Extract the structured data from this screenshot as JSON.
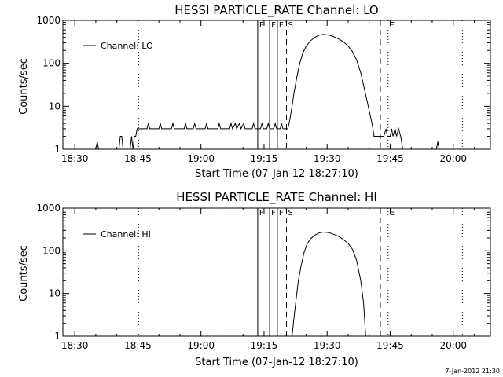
{
  "chart_data": [
    {
      "type": "line",
      "title": "HESSI PARTICLE_RATE Channel: LO",
      "xlabel": "Start Time (07-Jan-12 18:27:10)",
      "ylabel": "Counts/sec",
      "yscale": "log",
      "xlim": [
        "18:27:10",
        "20:08:50"
      ],
      "ylim": [
        1,
        1000
      ],
      "x_ticks": [
        "18:30",
        "18:45",
        "19:00",
        "19:15",
        "19:30",
        "19:45",
        "20:00"
      ],
      "y_ticks": [
        "1",
        "10",
        "100",
        "1000"
      ],
      "grid": false,
      "legend": {
        "position": "top-left",
        "entries": [
          "Channel: LO"
        ]
      },
      "markers": [
        {
          "label": "",
          "time": "18:45:10",
          "style": "dotted"
        },
        {
          "label": "F",
          "time": "19:13:30",
          "style": "solid"
        },
        {
          "label": "F",
          "time": "19:16:20",
          "style": "solid"
        },
        {
          "label": "F",
          "time": "19:18:10",
          "style": "solid"
        },
        {
          "label": "S",
          "time": "19:20:20",
          "style": "dashed"
        },
        {
          "label": "",
          "time": "19:42:40",
          "style": "dashed"
        },
        {
          "label": "E",
          "time": "19:44:30",
          "style": "dotted"
        },
        {
          "label": "",
          "time": "20:02:10",
          "style": "dotted"
        }
      ],
      "series": [
        {
          "name": "Channel: LO",
          "points": [
            [
              "18:27:10",
              1
            ],
            [
              "18:35:00",
              1
            ],
            [
              "18:35:20",
              1.5
            ],
            [
              "18:35:40",
              1
            ],
            [
              "18:40:30",
              1
            ],
            [
              "18:40:50",
              2
            ],
            [
              "18:41:10",
              2
            ],
            [
              "18:41:30",
              1
            ],
            [
              "18:43:10",
              1
            ],
            [
              "18:43:30",
              2
            ],
            [
              "18:43:50",
              1
            ],
            [
              "18:44:10",
              2
            ],
            [
              "18:44:30",
              2
            ],
            [
              "18:44:50",
              3
            ],
            [
              "18:47:10",
              3
            ],
            [
              "18:47:30",
              4
            ],
            [
              "18:47:50",
              3
            ],
            [
              "18:50:00",
              3
            ],
            [
              "18:50:20",
              4
            ],
            [
              "18:50:40",
              3
            ],
            [
              "18:53:00",
              3
            ],
            [
              "18:53:20",
              4
            ],
            [
              "18:53:40",
              3
            ],
            [
              "18:56:00",
              3
            ],
            [
              "18:56:20",
              4
            ],
            [
              "18:56:40",
              3
            ],
            [
              "18:58:10",
              3
            ],
            [
              "18:58:30",
              4
            ],
            [
              "18:58:50",
              3
            ],
            [
              "19:01:00",
              3
            ],
            [
              "19:01:20",
              4
            ],
            [
              "19:01:40",
              3
            ],
            [
              "19:04:00",
              3
            ],
            [
              "19:04:20",
              4
            ],
            [
              "19:04:40",
              3
            ],
            [
              "19:06:50",
              3
            ],
            [
              "19:07:10",
              4
            ],
            [
              "19:07:30",
              3
            ],
            [
              "19:08:10",
              4
            ],
            [
              "19:08:30",
              3
            ],
            [
              "19:09:10",
              4
            ],
            [
              "19:09:30",
              3
            ],
            [
              "19:10:10",
              4
            ],
            [
              "19:10:30",
              3
            ],
            [
              "19:12:10",
              3
            ],
            [
              "19:12:30",
              4
            ],
            [
              "19:12:50",
              3
            ],
            [
              "19:14:10",
              3
            ],
            [
              "19:14:30",
              4
            ],
            [
              "19:14:50",
              3
            ],
            [
              "19:15:40",
              3
            ],
            [
              "19:16:00",
              4
            ],
            [
              "19:16:20",
              3
            ],
            [
              "19:17:20",
              3
            ],
            [
              "19:17:40",
              4
            ],
            [
              "19:18:00",
              3
            ],
            [
              "19:18:50",
              3
            ],
            [
              "19:19:10",
              4
            ],
            [
              "19:19:30",
              3
            ],
            [
              "19:20:10",
              3
            ],
            [
              "19:20:40",
              3
            ],
            [
              "19:21:10",
              5
            ],
            [
              "19:21:40",
              10
            ],
            [
              "19:22:10",
              22
            ],
            [
              "19:22:50",
              50
            ],
            [
              "19:23:30",
              100
            ],
            [
              "19:24:10",
              170
            ],
            [
              "19:25:00",
              250
            ],
            [
              "19:26:00",
              330
            ],
            [
              "19:27:00",
              400
            ],
            [
              "19:28:00",
              450
            ],
            [
              "19:29:00",
              470
            ],
            [
              "19:30:00",
              460
            ],
            [
              "19:31:00",
              440
            ],
            [
              "19:32:00",
              400
            ],
            [
              "19:33:00",
              360
            ],
            [
              "19:34:00",
              310
            ],
            [
              "19:35:00",
              250
            ],
            [
              "19:36:00",
              190
            ],
            [
              "19:37:00",
              120
            ],
            [
              "19:38:00",
              60
            ],
            [
              "19:39:00",
              22
            ],
            [
              "19:40:00",
              8
            ],
            [
              "19:40:40",
              4
            ],
            [
              "19:41:10",
              2
            ],
            [
              "19:43:30",
              2
            ],
            [
              "19:44:00",
              3
            ],
            [
              "19:44:20",
              2
            ],
            [
              "19:45:00",
              2
            ],
            [
              "19:45:20",
              3
            ],
            [
              "19:45:40",
              2
            ],
            [
              "19:46:10",
              3
            ],
            [
              "19:46:30",
              2
            ],
            [
              "19:47:00",
              3
            ],
            [
              "19:47:30",
              2
            ],
            [
              "19:48:00",
              1
            ],
            [
              "19:56:00",
              1
            ],
            [
              "19:56:20",
              1.5
            ],
            [
              "19:56:40",
              1
            ],
            [
              "20:08:50",
              1
            ]
          ]
        }
      ]
    },
    {
      "type": "line",
      "title": "HESSI PARTICLE_RATE Channel: HI",
      "xlabel": "Start Time (07-Jan-12 18:27:10)",
      "ylabel": "Counts/sec",
      "yscale": "log",
      "xlim": [
        "18:27:10",
        "20:08:50"
      ],
      "ylim": [
        1,
        1000
      ],
      "x_ticks": [
        "18:30",
        "18:45",
        "19:00",
        "19:15",
        "19:30",
        "19:45",
        "20:00"
      ],
      "y_ticks": [
        "1",
        "10",
        "100",
        "1000"
      ],
      "grid": false,
      "legend": {
        "position": "top-left",
        "entries": [
          "Channel: HI"
        ]
      },
      "markers": [
        {
          "label": "",
          "time": "18:45:10",
          "style": "dotted"
        },
        {
          "label": "F",
          "time": "19:13:30",
          "style": "solid"
        },
        {
          "label": "F",
          "time": "19:16:20",
          "style": "solid"
        },
        {
          "label": "F",
          "time": "19:18:10",
          "style": "solid"
        },
        {
          "label": "S",
          "time": "19:20:20",
          "style": "dashed"
        },
        {
          "label": "",
          "time": "19:42:40",
          "style": "dashed"
        },
        {
          "label": "E",
          "time": "19:44:30",
          "style": "dotted"
        },
        {
          "label": "",
          "time": "20:02:10",
          "style": "dotted"
        }
      ],
      "series": [
        {
          "name": "Channel: HI",
          "points": [
            [
              "19:21:40",
              1
            ],
            [
              "19:22:10",
              3
            ],
            [
              "19:22:40",
              8
            ],
            [
              "19:23:10",
              20
            ],
            [
              "19:23:50",
              45
            ],
            [
              "19:24:30",
              90
            ],
            [
              "19:25:10",
              140
            ],
            [
              "19:26:00",
              190
            ],
            [
              "19:27:00",
              230
            ],
            [
              "19:28:00",
              260
            ],
            [
              "19:29:00",
              275
            ],
            [
              "19:30:00",
              270
            ],
            [
              "19:31:00",
              255
            ],
            [
              "19:32:00",
              235
            ],
            [
              "19:33:00",
              210
            ],
            [
              "19:34:00",
              180
            ],
            [
              "19:35:00",
              150
            ],
            [
              "19:36:00",
              110
            ],
            [
              "19:37:00",
              60
            ],
            [
              "19:38:00",
              20
            ],
            [
              "19:38:40",
              6
            ],
            [
              "19:39:10",
              1
            ]
          ]
        }
      ]
    }
  ],
  "footer": {
    "timestamp": "7-Jan-2012 21:30"
  }
}
